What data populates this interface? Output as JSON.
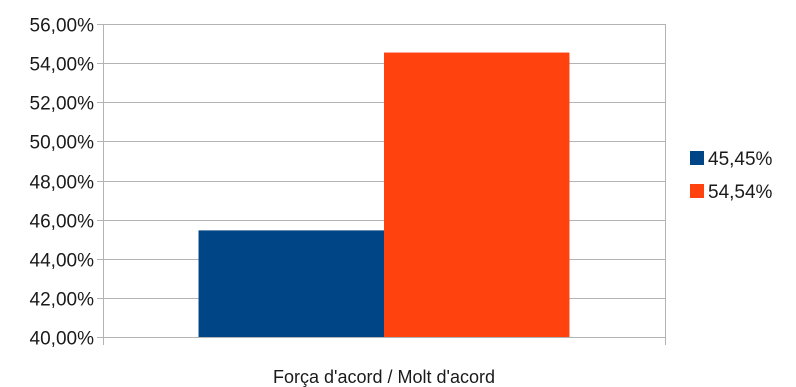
{
  "chart_data": {
    "type": "bar",
    "categories": [
      "Força d'acord / Molt d'acord"
    ],
    "series": [
      {
        "name": "45,45%",
        "values": [
          0.4545
        ],
        "color": "#004586"
      },
      {
        "name": "54,54%",
        "values": [
          0.5454
        ],
        "color": "#ff420e"
      }
    ],
    "ylim": [
      0.4,
      0.56
    ],
    "yticks": [
      0.4,
      0.42,
      0.44,
      0.46,
      0.48,
      0.5,
      0.52,
      0.54,
      0.56
    ],
    "ytick_labels": [
      "40,00%",
      "42,00%",
      "44,00%",
      "46,00%",
      "48,00%",
      "50,00%",
      "52,00%",
      "54,00%",
      "56,00%"
    ],
    "grid": true,
    "legend_position": "right",
    "title": "",
    "xlabel": "",
    "ylabel": ""
  }
}
